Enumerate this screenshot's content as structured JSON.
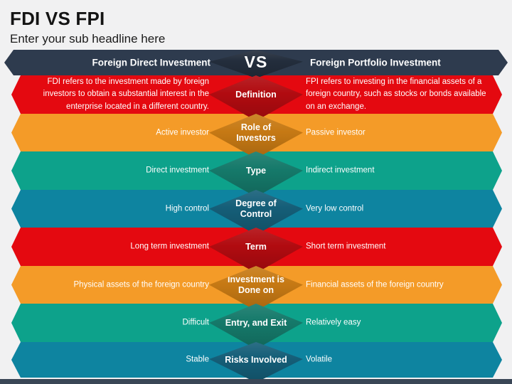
{
  "slide": {
    "title": "FDI VS FPI",
    "subtitle": "Enter your sub headline here",
    "background_color": "#F1F1F2"
  },
  "header": {
    "left": "Foreign Direct Investment",
    "center": "VS",
    "right": "Foreign Portfolio Investment",
    "band_color": "#2E3B4E",
    "diamond_color": "#232D3C"
  },
  "rows": [
    {
      "label": "Definition",
      "left": "FDI refers to the investment made by foreign investors to obtain a substantial interest in the enterprise located in a different country.",
      "right": "FPI refers to investing in the financial assets of a foreign country, such as stocks or bonds available on an exchange.",
      "band_color": "#E40910",
      "diamond_color": "#B10B10"
    },
    {
      "label": "Role of Investors",
      "left": "Active investor",
      "right": "Passive investor",
      "band_color": "#F49B28",
      "diamond_color": "#C67914"
    },
    {
      "label": "Type",
      "left": "Direct investment",
      "right": "Indirect investment",
      "band_color": "#0DA28B",
      "diamond_color": "#15796A"
    },
    {
      "label": "Degree of Control",
      "left": "High control",
      "right": "Very low control",
      "band_color": "#0E84A0",
      "diamond_color": "#155E78"
    },
    {
      "label": "Term",
      "left": "Long term investment",
      "right": "Short term investment",
      "band_color": "#E40910",
      "diamond_color": "#B10B10"
    },
    {
      "label": "Investment is Done on",
      "left": "Physical assets of the foreign country",
      "right": "Financial assets of the foreign country",
      "band_color": "#F49B28",
      "diamond_color": "#C67914"
    },
    {
      "label": "Entry, and Exit",
      "left": "Difficult",
      "right": "Relatively easy",
      "band_color": "#0DA28B",
      "diamond_color": "#15796A"
    },
    {
      "label": "Risks Involved",
      "left": "Stable",
      "right": "Volatile",
      "band_color": "#0E84A0",
      "diamond_color": "#155E78"
    }
  ],
  "footer": {
    "bar_color": "#3A4656"
  }
}
